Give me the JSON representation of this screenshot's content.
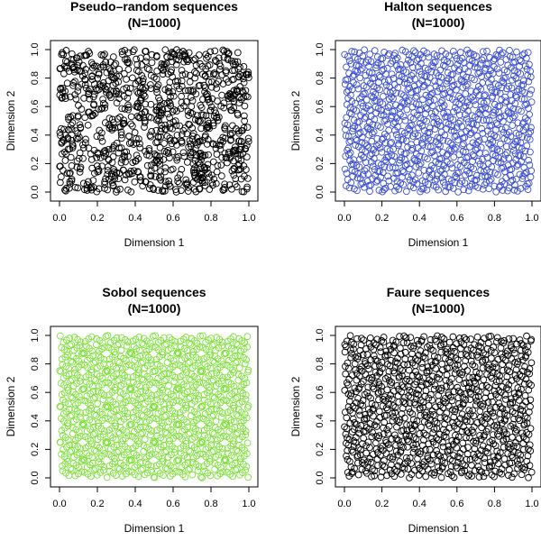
{
  "chart_data": [
    {
      "type": "scatter",
      "title": "Pseudo–random sequences",
      "subtitle": "(N=1000)",
      "xlabel": "Dimension 1",
      "ylabel": "Dimension 2",
      "xlim": [
        0,
        1
      ],
      "ylim": [
        0,
        1
      ],
      "xticks": [
        "0.0",
        "0.2",
        "0.4",
        "0.6",
        "0.8",
        "1.0"
      ],
      "yticks": [
        "0.0",
        "0.2",
        "0.4",
        "0.6",
        "0.8",
        "1.0"
      ],
      "n_points": 1000,
      "sequence": "pseudo-random",
      "color": "#000000",
      "grid": false,
      "legend": "none"
    },
    {
      "type": "scatter",
      "title": "Halton sequences",
      "subtitle": "(N=1000)",
      "xlabel": "Dimension 1",
      "ylabel": "Dimension 2",
      "xlim": [
        0,
        1
      ],
      "ylim": [
        0,
        1
      ],
      "xticks": [
        "0.0",
        "0.2",
        "0.4",
        "0.6",
        "0.8",
        "1.0"
      ],
      "yticks": [
        "0.0",
        "0.2",
        "0.4",
        "0.6",
        "0.8",
        "1.0"
      ],
      "n_points": 1000,
      "sequence": "halton",
      "color": "#3b4fcf",
      "grid": false,
      "legend": "none"
    },
    {
      "type": "scatter",
      "title": "Sobol sequences",
      "subtitle": "(N=1000)",
      "xlabel": "Dimension 1",
      "ylabel": "Dimension 2",
      "xlim": [
        0,
        1
      ],
      "ylim": [
        0,
        1
      ],
      "xticks": [
        "0.0",
        "0.2",
        "0.4",
        "0.6",
        "0.8",
        "1.0"
      ],
      "yticks": [
        "0.0",
        "0.2",
        "0.4",
        "0.6",
        "0.8",
        "1.0"
      ],
      "n_points": 1000,
      "sequence": "sobol",
      "color": "#7ee03a",
      "grid": false,
      "legend": "none"
    },
    {
      "type": "scatter",
      "title": "Faure sequences",
      "subtitle": "(N=1000)",
      "xlabel": "Dimension 1",
      "ylabel": "Dimension 2",
      "xlim": [
        0,
        1
      ],
      "ylim": [
        0,
        1
      ],
      "xticks": [
        "0.0",
        "0.2",
        "0.4",
        "0.6",
        "0.8",
        "1.0"
      ],
      "yticks": [
        "0.0",
        "0.2",
        "0.4",
        "0.6",
        "0.8",
        "1.0"
      ],
      "n_points": 1000,
      "sequence": "faure",
      "color": "#000000",
      "grid": false,
      "legend": "none"
    }
  ]
}
